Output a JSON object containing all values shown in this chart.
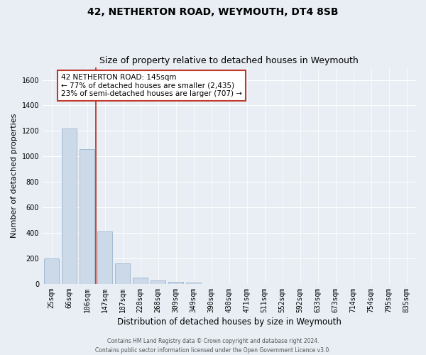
{
  "title1": "42, NETHERTON ROAD, WEYMOUTH, DT4 8SB",
  "title2": "Size of property relative to detached houses in Weymouth",
  "xlabel": "Distribution of detached houses by size in Weymouth",
  "ylabel": "Number of detached properties",
  "bar_labels": [
    "25sqm",
    "66sqm",
    "106sqm",
    "147sqm",
    "187sqm",
    "228sqm",
    "268sqm",
    "309sqm",
    "349sqm",
    "390sqm",
    "430sqm",
    "471sqm",
    "511sqm",
    "552sqm",
    "592sqm",
    "633sqm",
    "673sqm",
    "714sqm",
    "754sqm",
    "795sqm",
    "835sqm"
  ],
  "bar_values": [
    200,
    1220,
    1060,
    410,
    160,
    50,
    25,
    15,
    10,
    0,
    0,
    0,
    0,
    0,
    0,
    0,
    0,
    0,
    0,
    0,
    0
  ],
  "bar_color": "#ccd9e8",
  "bar_edge_color": "#9ab4ce",
  "highlight_color": "#c0392b",
  "annotation_line1": "42 NETHERTON ROAD: 145sqm",
  "annotation_line2": "← 77% of detached houses are smaller (2,435)",
  "annotation_line3": "23% of semi-detached houses are larger (707) →",
  "annotation_box_color": "#c0392b",
  "ylim": [
    0,
    1700
  ],
  "yticks": [
    0,
    200,
    400,
    600,
    800,
    1000,
    1200,
    1400,
    1600
  ],
  "footer1": "Contains HM Land Registry data © Crown copyright and database right 2024.",
  "footer2": "Contains public sector information licensed under the Open Government Licence v3.0.",
  "bg_color": "#e8eef4",
  "plot_bg_color": "#e8eef4",
  "grid_color": "#ffffff",
  "title1_fontsize": 10,
  "title2_fontsize": 9,
  "tick_fontsize": 7,
  "ylabel_fontsize": 8,
  "xlabel_fontsize": 8.5,
  "footer_fontsize": 5.5,
  "ann_fontsize": 7.5
}
